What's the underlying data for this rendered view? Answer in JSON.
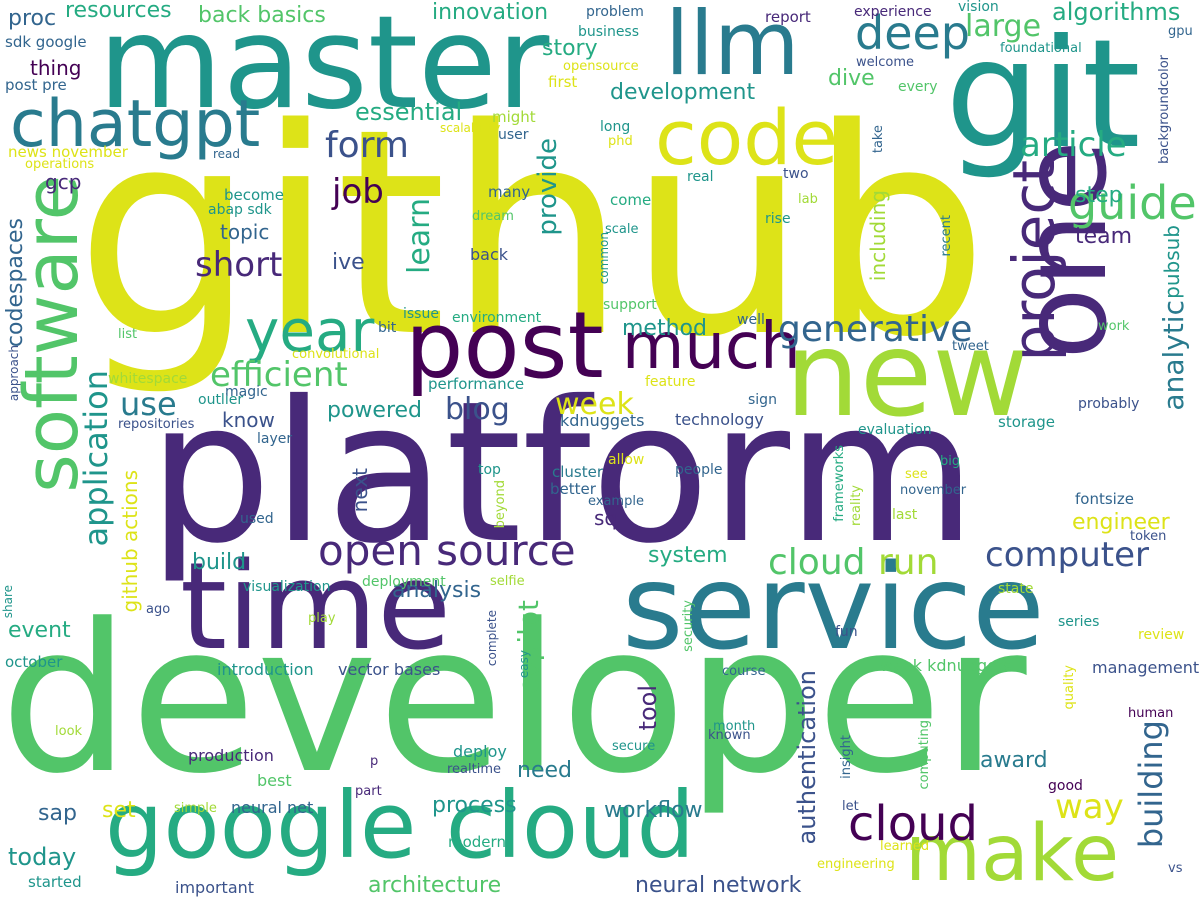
{
  "palette": {
    "yellow": "#dde318",
    "lime": "#a2da37",
    "green": "#52c569",
    "teal": "#25ab82",
    "cyan": "#1f958b",
    "blue": "#297b8e",
    "steel": "#32658e",
    "indigo": "#3b528b",
    "violet": "#482979",
    "purple": "#440154",
    "background": "#ffffff"
  },
  "words": [
    "github",
    "developer",
    "platform",
    "master",
    "git",
    "time",
    "service",
    "new",
    "one",
    "google cloud",
    "post",
    "llm",
    "chatgpt",
    "code",
    "software",
    "make",
    "much",
    "project",
    "year",
    "open source",
    "cloud",
    "generative",
    "deep",
    "efficient",
    "computer",
    "article",
    "guide",
    "form",
    "job",
    "short",
    "application",
    "analytic",
    "run",
    "cloud",
    "way",
    "building",
    "use",
    "blog",
    "week",
    "essential",
    "learn",
    "provide",
    "large",
    "algorithms",
    "resources",
    "back basics",
    "innovation",
    "story",
    "dive",
    "development",
    "proc",
    "thing",
    "sdk google",
    "post pre",
    "news november",
    "operations",
    "gcp",
    "codespaces",
    "topic",
    "ive",
    "team",
    "pubsub",
    "step",
    "including",
    "github actions",
    "copilot",
    "event",
    "today",
    "sap",
    "set",
    "know",
    "powered",
    "sql",
    "next",
    "system",
    "build",
    "tool",
    "authentication",
    "award",
    "engineer",
    "fontsize",
    "process",
    "workflow",
    "neural network",
    "architecture",
    "analysis",
    "need",
    "method",
    "report",
    "experience",
    "vision",
    "gpu",
    "foundational",
    "backgroundcolor",
    "problem",
    "business",
    "opensource",
    "welcome",
    "every",
    "first",
    "might",
    "scalability",
    "user",
    "phd",
    "long",
    "take",
    "read",
    "real",
    "two",
    "lab",
    "many",
    "become",
    "abap sdk",
    "come",
    "scale",
    "dream",
    "common",
    "back",
    "rise",
    "recent",
    "support",
    "list",
    "issue",
    "environment",
    "bit",
    "convolutional",
    "approach",
    "whitespace",
    "performance",
    "feature",
    "well",
    "tweet",
    "work",
    "outlier",
    "repositories",
    "magic",
    "layer",
    "kdnuggets",
    "technology",
    "sign",
    "probably",
    "storage",
    "evaluation",
    "allow",
    "cluster",
    "better",
    "top",
    "beyond",
    "people",
    "see",
    "big",
    "november",
    "last",
    "frameworks",
    "reality",
    "example",
    "used",
    "token",
    "selfie",
    "deployment",
    "visualization",
    "share",
    "ago",
    "play",
    "state",
    "security",
    "complete",
    "easy",
    "series",
    "review",
    "fun",
    "october",
    "introduction",
    "vector bases",
    "week kdnuggets",
    "management",
    "quality",
    "course",
    "look",
    "month",
    "known",
    "insight",
    "human",
    "production",
    "secure",
    "deploy",
    "realtime",
    "p",
    "best",
    "good",
    "computing",
    "simple",
    "neural net",
    "part",
    "let",
    "modern",
    "learned",
    "important",
    "started",
    "engineering",
    "vs"
  ]
}
